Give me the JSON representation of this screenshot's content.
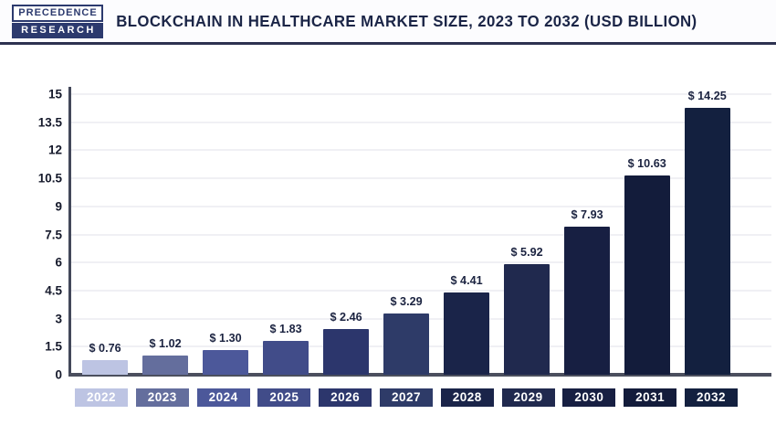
{
  "brand": {
    "line1": "PRECEDENCE",
    "line2": "RESEARCH"
  },
  "header": {
    "title": "BLOCKCHAIN IN HEALTHCARE MARKET SIZE, 2023 TO 2032 (USD BILLION)"
  },
  "chart_data": {
    "type": "bar",
    "title": "BLOCKCHAIN IN HEALTHCARE MARKET SIZE, 2023 TO 2032 (USD BILLION)",
    "units": "USD Billion",
    "categories": [
      "2022",
      "2023",
      "2024",
      "2025",
      "2026",
      "2027",
      "2028",
      "2029",
      "2030",
      "2031",
      "2032"
    ],
    "values": [
      0.76,
      1.02,
      1.3,
      1.83,
      2.46,
      3.29,
      4.41,
      5.92,
      7.93,
      10.63,
      14.25
    ],
    "value_labels": [
      "$ 0.76",
      "$ 1.02",
      "$ 1.30",
      "$ 1.83",
      "$ 2.46",
      "$ 3.29",
      "$ 4.41",
      "$ 5.92",
      "$ 7.93",
      "$ 10.63",
      "$ 14.25"
    ],
    "bar_colors": [
      "#bdc4e3",
      "#646e9d",
      "#4c589a",
      "#414c89",
      "#2c366c",
      "#2e3b68",
      "#1a2449",
      "#20294e",
      "#171f42",
      "#131c3b",
      "#13203f"
    ],
    "xlabel": "",
    "ylabel": "",
    "ylim": [
      0,
      15
    ],
    "yticks": [
      0,
      1.5,
      3,
      4.5,
      6,
      7.5,
      9,
      10.5,
      12,
      13.5,
      15
    ],
    "ytick_labels": [
      "0",
      "1.5",
      "3",
      "4.5",
      "6",
      "7.5",
      "9",
      "10.5",
      "12",
      "13.5",
      "15"
    ],
    "grid": true,
    "legend": false
  },
  "colors": {
    "accent_navy": "#1b2547",
    "axis": "#4b4f5e",
    "gridline": "#f0f0f4",
    "divider": "#2d3250",
    "logo_navy": "#2c3a6e"
  }
}
